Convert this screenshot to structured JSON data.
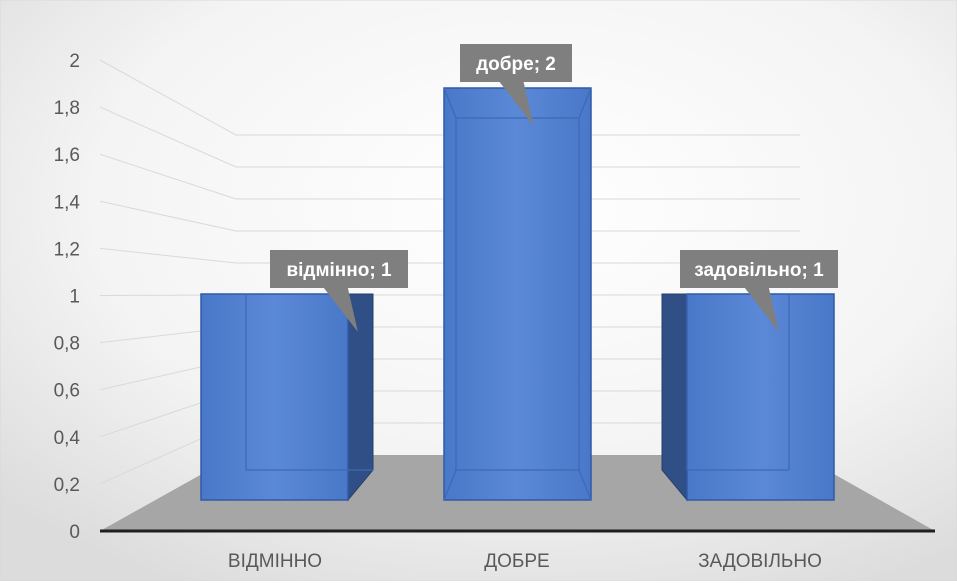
{
  "chart_data": {
    "type": "bar",
    "categories": [
      "ВІДМІННО",
      "ДОБРЕ",
      "ЗАДОВІЛЬНО"
    ],
    "values": [
      1,
      2,
      1
    ],
    "data_labels": [
      "відмінно; 1",
      "добре; 2",
      "задовільно; 1"
    ],
    "y_ticks": [
      "0",
      "0,2",
      "0,4",
      "0,6",
      "0,8",
      "1",
      "1,2",
      "1,4",
      "1,6",
      "1,8",
      "2"
    ],
    "ylim": [
      0,
      2
    ],
    "grid": true,
    "style": "3d",
    "bar_color": "#4472C4",
    "floor_color": "#A6A6A6",
    "label_bg_color": "#7F7F7F"
  }
}
